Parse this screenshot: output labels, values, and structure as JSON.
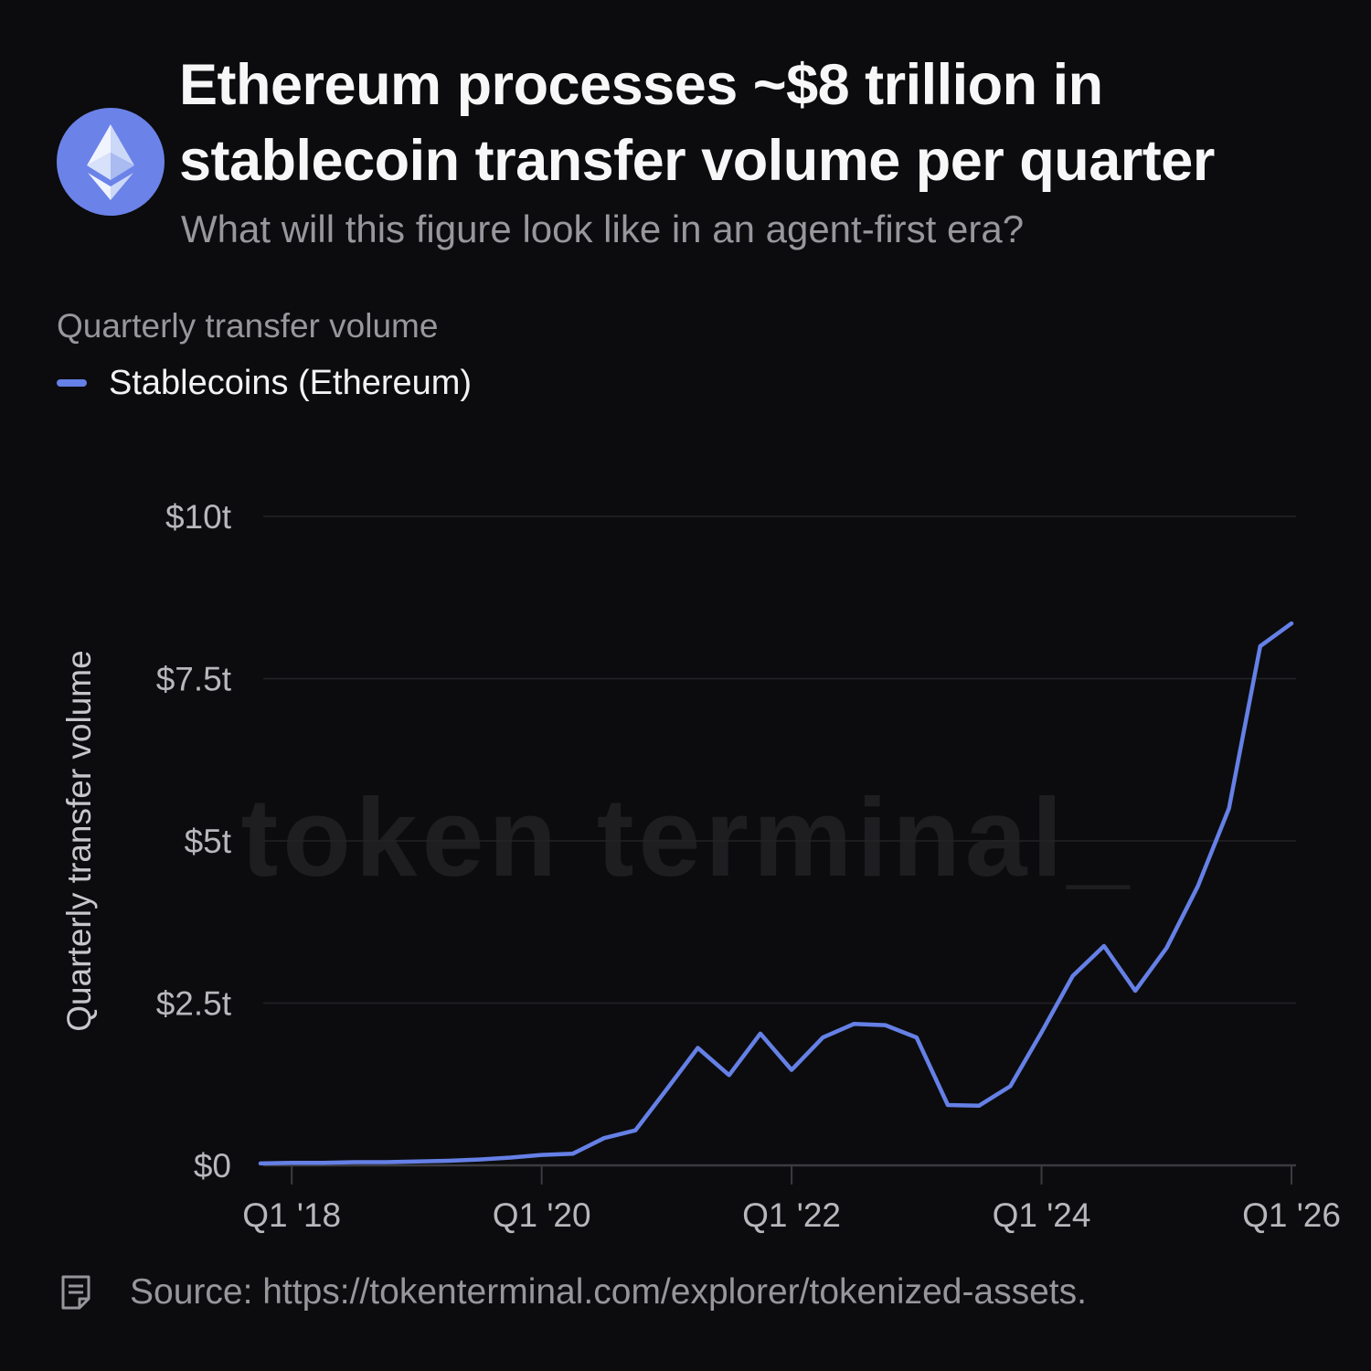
{
  "header": {
    "title": "Ethereum processes ~$8 trillion in stablecoin transfer volume per quarter",
    "subtitle": "What will this figure look like in an agent-first era?"
  },
  "legend": {
    "context_label": "Quarterly transfer volume",
    "series_label": "Stablecoins (Ethereum)"
  },
  "watermark": "token terminal_",
  "footer": {
    "source_text": "Source: https://tokenterminal.com/explorer/tokenized-assets."
  },
  "icons": {
    "logo": "ethereum-logo",
    "source": "memo-icon"
  },
  "colors": {
    "background": "#0c0c0e",
    "line": "#6580e6",
    "logo_circle": "#6b82e8",
    "title_text": "#f7f7f8",
    "muted_text": "#97979c",
    "tick_text": "#b7b7bc",
    "axis_title_text": "#c6c6cb",
    "gridline": "#232327",
    "axis_line": "#3b3b40",
    "watermark": "#1e1e21"
  },
  "chart_data": {
    "type": "line",
    "title": "Quarterly transfer volume",
    "ylabel": "Quarterly transfer volume",
    "unit": "trillion USD per quarter",
    "ylim": [
      0,
      10
    ],
    "grid": "horizontal",
    "legend_position": "top-left",
    "quarters": [
      "Q4 '17",
      "Q1 '18",
      "Q2 '18",
      "Q3 '18",
      "Q4 '18",
      "Q1 '19",
      "Q2 '19",
      "Q3 '19",
      "Q4 '19",
      "Q1 '20",
      "Q2 '20",
      "Q3 '20",
      "Q4 '20",
      "Q1 '21",
      "Q2 '21",
      "Q3 '21",
      "Q4 '21",
      "Q1 '22",
      "Q2 '22",
      "Q3 '22",
      "Q4 '22",
      "Q1 '23",
      "Q2 '23",
      "Q3 '23",
      "Q4 '23",
      "Q1 '24",
      "Q2 '24",
      "Q3 '24",
      "Q4 '24",
      "Q1 '25",
      "Q2 '25",
      "Q3 '25",
      "Q4 '25",
      "Q1 '26"
    ],
    "series": [
      {
        "name": "Stablecoins (Ethereum)",
        "values": [
          0.03,
          0.04,
          0.04,
          0.05,
          0.05,
          0.06,
          0.07,
          0.09,
          0.12,
          0.16,
          0.18,
          0.42,
          0.54,
          1.17,
          1.81,
          1.39,
          2.03,
          1.47,
          1.97,
          2.18,
          2.16,
          1.97,
          0.93,
          0.92,
          1.22,
          2.05,
          2.92,
          3.38,
          2.69,
          3.35,
          4.3,
          5.5,
          8.0,
          8.35
        ]
      }
    ],
    "xticks": [
      {
        "label": "Q1 '18",
        "index": 1
      },
      {
        "label": "Q1 '20",
        "index": 9
      },
      {
        "label": "Q1 '22",
        "index": 17
      },
      {
        "label": "Q1 '24",
        "index": 25
      },
      {
        "label": "Q1 '26",
        "index": 33
      }
    ],
    "yticks": [
      {
        "label": "$0",
        "value": 0
      },
      {
        "label": "$2.5t",
        "value": 2.5
      },
      {
        "label": "$5t",
        "value": 5
      },
      {
        "label": "$7.5t",
        "value": 7.5
      },
      {
        "label": "$10t",
        "value": 10
      }
    ]
  }
}
